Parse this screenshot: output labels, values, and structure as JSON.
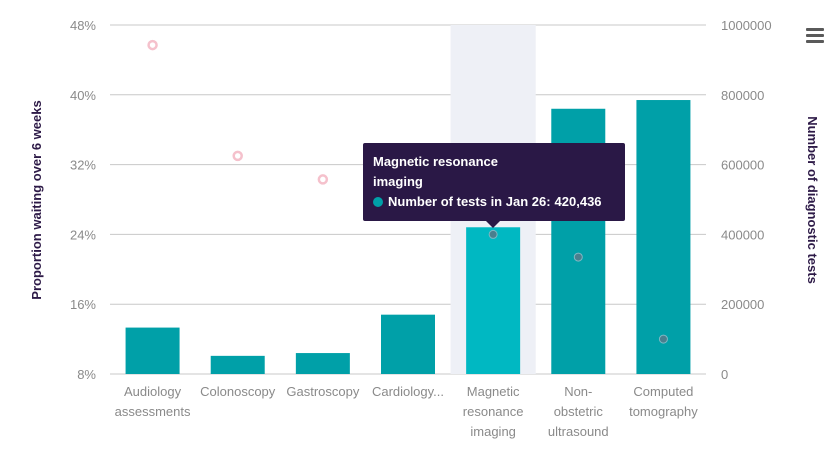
{
  "chart_data": {
    "type": "bar",
    "categories": [
      [
        "Audiology",
        "assessments"
      ],
      [
        "Colonoscopy"
      ],
      [
        "Gastroscopy"
      ],
      [
        "Cardiology..."
      ],
      [
        "Magnetic",
        "resonance",
        "imaging"
      ],
      [
        "Non-",
        "obstetric",
        "ultrasound"
      ],
      [
        "Computed",
        "tomography"
      ]
    ],
    "series": [
      {
        "type": "bar",
        "axis": "right",
        "label": "Number of tests in Jan 26",
        "values": [
          133000,
          52000,
          60000,
          170000,
          420436,
          760000,
          785000
        ]
      },
      {
        "type": "scatter",
        "axis": "left",
        "values_pct": [
          45.7,
          33.0,
          30.3,
          null,
          24.0,
          21.4,
          12.0
        ]
      }
    ],
    "ylabel_left": "Proportion waiting over 6 weeks",
    "ylabel_right": "Number of diagnostic tests",
    "left_ticks": [
      "48%",
      "40%",
      "32%",
      "24%",
      "16%",
      "8%"
    ],
    "right_ticks": [
      "1000000",
      "800000",
      "600000",
      "400000",
      "200000",
      "0"
    ],
    "left_range": [
      8,
      48
    ],
    "right_range": [
      0,
      1000000
    ],
    "grid": true,
    "highlighted_index": 4,
    "colors": {
      "bar": "#00a0a8",
      "bar_highlight": "#00b8c2",
      "highlight_band": "#eef0f6",
      "marker_faded_stroke": "#f5c1cc",
      "marker_active": "#4a7f8e",
      "grid": "#c8c8c8",
      "tooltip_bg": "#2a1846",
      "tooltip_dot": "#00a0a8"
    }
  },
  "tooltip": {
    "title": "Magnetic resonance imaging",
    "series_label": "Number of tests in Jan 26:",
    "value": "420,436"
  }
}
